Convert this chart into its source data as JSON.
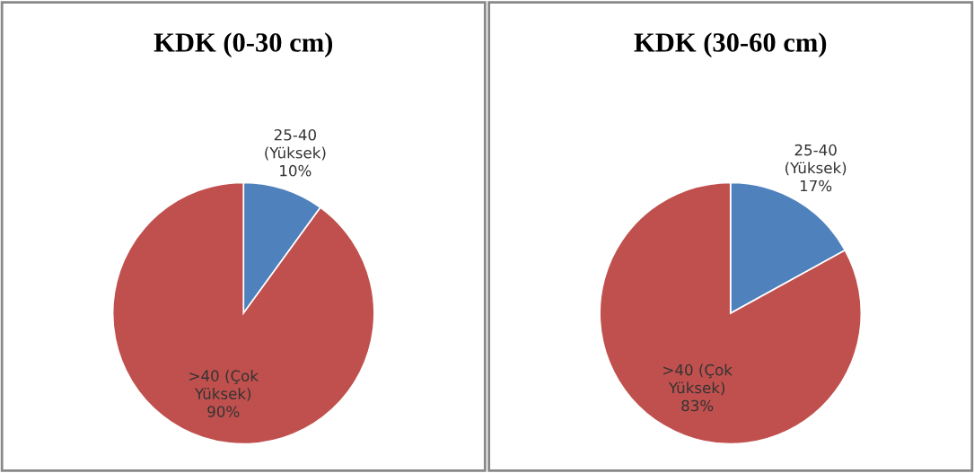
{
  "chart_data": [
    {
      "type": "pie",
      "title": "KDK (0-30 cm)",
      "categories": [
        "25-40\n(Yüksek)",
        ">40 (Çok\nYüksek)"
      ],
      "values": [
        10,
        90
      ],
      "value_labels": [
        "10%",
        "90%"
      ],
      "colors": [
        "#4f81bd",
        "#c0504d"
      ]
    },
    {
      "type": "pie",
      "title": "KDK (30-60 cm)",
      "categories": [
        "25-40\n(Yüksek)",
        ">40 (Çok\nYüksek)"
      ],
      "values": [
        17,
        83
      ],
      "value_labels": [
        "17%",
        "83%"
      ],
      "colors": [
        "#4f81bd",
        "#c0504d"
      ]
    }
  ]
}
